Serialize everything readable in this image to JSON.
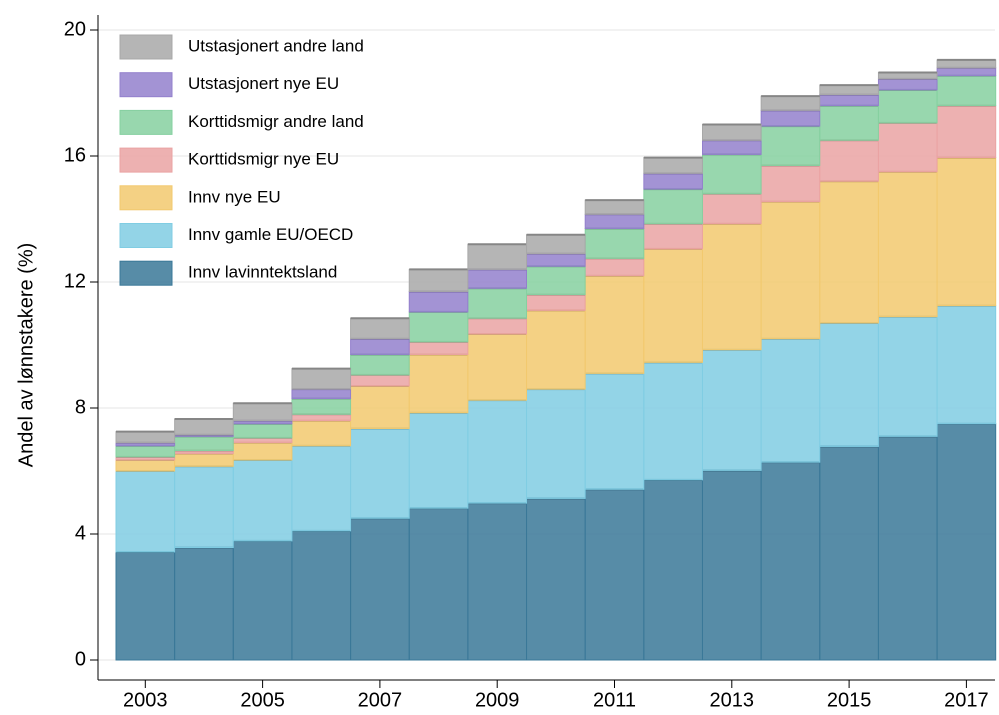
{
  "chart_data": {
    "type": "stacked_bar",
    "y_label": "Andel av lønnstakere (%)",
    "categories": [
      "2003",
      null,
      "2005",
      null,
      "2007",
      null,
      "2009",
      null,
      "2011",
      null,
      "2013",
      null,
      "2015",
      null,
      "2017"
    ],
    "ylim": [
      0,
      20
    ],
    "yticks": [
      0,
      4,
      8,
      12,
      16,
      20
    ],
    "grid": true,
    "legend": "upper left",
    "series": [
      {
        "name": "Innv lavinntektsland",
        "color": "#3a7898",
        "values": [
          3.43,
          3.57,
          3.78,
          4.1,
          4.5,
          4.82,
          4.98,
          5.13,
          5.42,
          5.72,
          6.02,
          6.28,
          6.78,
          7.1,
          7.5
        ]
      },
      {
        "name": "Innv gamle EU/OECD",
        "color": "#80cde3",
        "values": [
          2.57,
          2.58,
          2.57,
          2.7,
          2.85,
          3.03,
          3.27,
          3.47,
          3.68,
          3.73,
          3.83,
          3.92,
          3.92,
          3.8,
          3.75
        ]
      },
      {
        "name": "Innv nye EU",
        "color": "#f2c96e",
        "values": [
          0.35,
          0.4,
          0.55,
          0.8,
          1.35,
          1.85,
          2.1,
          2.5,
          3.1,
          3.6,
          4.0,
          4.35,
          4.5,
          4.6,
          4.7
        ]
      },
      {
        "name": "Korttidsmigr nye EU",
        "color": "#eaa3a3",
        "values": [
          0.1,
          0.1,
          0.15,
          0.2,
          0.35,
          0.4,
          0.5,
          0.5,
          0.55,
          0.8,
          0.95,
          1.15,
          1.3,
          1.55,
          1.65
        ]
      },
      {
        "name": "Korttidsmigr andre land",
        "color": "#86d0a0",
        "values": [
          0.35,
          0.45,
          0.45,
          0.5,
          0.65,
          0.95,
          0.95,
          0.9,
          0.95,
          1.1,
          1.25,
          1.25,
          1.1,
          1.05,
          0.95
        ]
      },
      {
        "name": "Utstasjonert nye EU",
        "color": "#9380cc",
        "values": [
          0.1,
          0.05,
          0.1,
          0.3,
          0.5,
          0.65,
          0.6,
          0.4,
          0.45,
          0.5,
          0.45,
          0.5,
          0.35,
          0.35,
          0.25
        ]
      },
      {
        "name": "Utstasjonert andre land",
        "color": "#a8a8a8",
        "values": [
          0.35,
          0.5,
          0.55,
          0.65,
          0.65,
          0.7,
          0.8,
          0.6,
          0.45,
          0.5,
          0.5,
          0.45,
          0.3,
          0.2,
          0.25
        ]
      }
    ]
  }
}
